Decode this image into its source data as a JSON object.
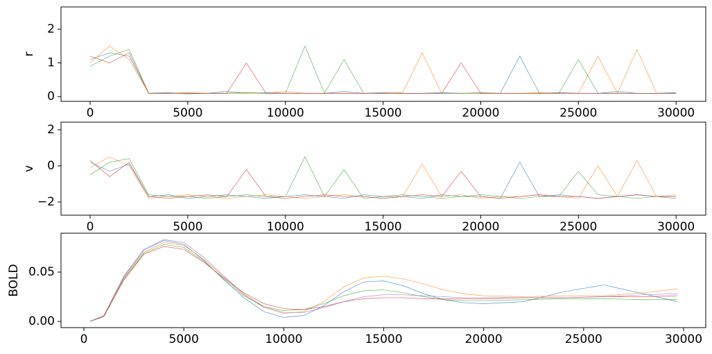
{
  "chart_data": [
    {
      "type": "line",
      "y_label": "r",
      "x": [
        0,
        1000,
        2000,
        3000,
        4000,
        5000,
        6000,
        7000,
        8000,
        9000,
        10000,
        11000,
        12000,
        13000,
        14000,
        15000,
        16000,
        17000,
        18000,
        19000,
        20000,
        21000,
        22000,
        23000,
        24000,
        25000,
        26000,
        27000,
        28000,
        29000,
        30000
      ],
      "series": [
        {
          "color": "#1f77b4",
          "values": [
            1.1,
            1.3,
            1.2,
            0.1,
            0.12,
            0.08,
            0.1,
            0.15,
            0.1,
            0.12,
            0.1,
            0.1,
            0.1,
            0.15,
            0.1,
            0.12,
            0.1,
            0.1,
            0.12,
            0.1,
            0.1,
            0.1,
            1.2,
            0.1,
            0.12,
            0.1,
            0.1,
            0.15,
            0.1,
            0.1,
            0.12
          ]
        },
        {
          "color": "#ff7f0e",
          "values": [
            1.0,
            1.5,
            1.1,
            0.1,
            0.1,
            0.12,
            0.1,
            0.1,
            0.1,
            0.1,
            0.15,
            0.1,
            0.1,
            0.1,
            0.1,
            0.1,
            0.12,
            1.3,
            0.1,
            0.1,
            0.1,
            0.1,
            0.1,
            0.12,
            0.1,
            0.1,
            1.2,
            0.1,
            1.4,
            0.1,
            0.1
          ]
        },
        {
          "color": "#2ca02c",
          "values": [
            0.9,
            1.2,
            1.4,
            0.1,
            0.1,
            0.1,
            0.1,
            0.1,
            0.12,
            0.1,
            0.1,
            1.5,
            0.1,
            1.1,
            0.1,
            0.1,
            0.1,
            0.1,
            0.1,
            0.1,
            0.12,
            0.1,
            0.1,
            0.1,
            0.1,
            1.1,
            0.1,
            0.1,
            0.1,
            0.1,
            0.1
          ]
        },
        {
          "color": "#d62728",
          "values": [
            1.2,
            1.0,
            1.3,
            0.1,
            0.1,
            0.1,
            0.1,
            0.1,
            1.0,
            0.1,
            0.1,
            0.1,
            0.1,
            0.1,
            0.1,
            0.1,
            0.1,
            0.1,
            0.1,
            1.0,
            0.1,
            0.1,
            0.1,
            0.1,
            0.1,
            0.1,
            0.1,
            0.1,
            0.1,
            0.1,
            0.1
          ]
        }
      ],
      "xlim": [
        -1490,
        31520
      ],
      "ylim": [
        -0.14,
        2.66
      ],
      "xticks": [
        0,
        5000,
        10000,
        15000,
        20000,
        25000,
        30000
      ],
      "yticks": [
        0,
        1,
        2
      ]
    },
    {
      "type": "line",
      "y_label": "v",
      "x": [
        0,
        1000,
        2000,
        3000,
        4000,
        5000,
        6000,
        7000,
        8000,
        9000,
        10000,
        11000,
        12000,
        13000,
        14000,
        15000,
        16000,
        17000,
        18000,
        19000,
        20000,
        21000,
        22000,
        23000,
        24000,
        25000,
        26000,
        27000,
        28000,
        29000,
        30000
      ],
      "series": [
        {
          "color": "#1f77b4",
          "values": [
            0.2,
            -0.3,
            0.1,
            -1.7,
            -1.6,
            -1.8,
            -1.7,
            -1.6,
            -1.7,
            -1.8,
            -1.7,
            -1.6,
            -1.7,
            -1.8,
            -1.6,
            -1.7,
            -1.7,
            -1.8,
            -1.6,
            -1.7,
            -1.7,
            -1.8,
            0.2,
            -1.7,
            -1.6,
            -1.7,
            -1.8,
            -1.7,
            -1.6,
            -1.7,
            -1.8
          ]
        },
        {
          "color": "#ff7f0e",
          "values": [
            -0.1,
            0.5,
            0.0,
            -1.8,
            -1.7,
            -1.6,
            -1.7,
            -1.8,
            -1.7,
            -1.6,
            -1.7,
            -1.8,
            -1.7,
            -1.6,
            -1.7,
            -1.8,
            -1.7,
            0.1,
            -1.7,
            -1.6,
            -1.8,
            -1.7,
            -1.7,
            -1.6,
            -1.7,
            -1.8,
            0.0,
            -1.7,
            0.3,
            -1.7,
            -1.6
          ]
        },
        {
          "color": "#2ca02c",
          "values": [
            -0.5,
            0.2,
            0.4,
            -1.6,
            -1.7,
            -1.7,
            -1.8,
            -1.7,
            -1.6,
            -1.7,
            -1.7,
            0.5,
            -1.7,
            -0.2,
            -1.8,
            -1.7,
            -1.6,
            -1.7,
            -1.8,
            -1.7,
            -1.6,
            -1.7,
            -1.8,
            -1.7,
            -1.7,
            -0.3,
            -1.6,
            -1.7,
            -1.8,
            -1.7,
            -1.7
          ]
        },
        {
          "color": "#d62728",
          "values": [
            0.3,
            -0.6,
            0.2,
            -1.7,
            -1.8,
            -1.7,
            -1.6,
            -1.7,
            -0.2,
            -1.7,
            -1.8,
            -1.7,
            -1.6,
            -1.7,
            -1.7,
            -1.8,
            -1.7,
            -1.6,
            -1.7,
            -0.3,
            -1.7,
            -1.8,
            -1.7,
            -1.6,
            -1.7,
            -1.7,
            -1.8,
            -1.7,
            -1.6,
            -1.7,
            -1.7
          ]
        }
      ],
      "xlim": [
        -1490,
        31520
      ],
      "ylim": [
        -2.73,
        2.42
      ],
      "xticks": [
        0,
        5000,
        10000,
        15000,
        20000,
        25000,
        30000
      ],
      "yticks": [
        {
          "value": -2,
          "label": "−2"
        },
        0,
        2
      ]
    },
    {
      "type": "line",
      "y_label": "BOLD",
      "x": [
        300,
        1000,
        2000,
        3000,
        4000,
        5000,
        6000,
        7000,
        8000,
        9000,
        10000,
        11000,
        12000,
        13000,
        14000,
        15000,
        16000,
        17000,
        18000,
        19000,
        20000,
        22000,
        24000,
        26000,
        28000,
        29700
      ],
      "series": [
        {
          "color": "#1f77b4",
          "values": [
            0,
            0.006,
            0.045,
            0.072,
            0.082,
            0.078,
            0.062,
            0.042,
            0.024,
            0.01,
            0.004,
            0.006,
            0.016,
            0.03,
            0.04,
            0.041,
            0.036,
            0.028,
            0.022,
            0.019,
            0.018,
            0.02,
            0.03,
            0.037,
            0.028,
            0.02
          ]
        },
        {
          "color": "#ff7f0e",
          "values": [
            0,
            0.006,
            0.044,
            0.07,
            0.08,
            0.077,
            0.063,
            0.045,
            0.027,
            0.014,
            0.008,
            0.01,
            0.02,
            0.035,
            0.044,
            0.046,
            0.043,
            0.038,
            0.032,
            0.028,
            0.026,
            0.025,
            0.026,
            0.026,
            0.029,
            0.033
          ]
        },
        {
          "color": "#2ca02c",
          "values": [
            0,
            0.005,
            0.043,
            0.069,
            0.078,
            0.075,
            0.061,
            0.043,
            0.026,
            0.015,
            0.011,
            0.012,
            0.018,
            0.026,
            0.031,
            0.032,
            0.029,
            0.025,
            0.022,
            0.021,
            0.021,
            0.022,
            0.023,
            0.023,
            0.022,
            0.022
          ]
        },
        {
          "color": "#d62728",
          "values": [
            0,
            0.005,
            0.042,
            0.068,
            0.076,
            0.073,
            0.06,
            0.044,
            0.029,
            0.018,
            0.013,
            0.012,
            0.015,
            0.02,
            0.023,
            0.024,
            0.024,
            0.023,
            0.023,
            0.023,
            0.023,
            0.024,
            0.024,
            0.025,
            0.025,
            0.026
          ]
        },
        {
          "color": "#9467bd",
          "values": [
            0,
            0.006,
            0.046,
            0.073,
            0.083,
            0.08,
            0.065,
            0.046,
            0.028,
            0.015,
            0.009,
            0.009,
            0.014,
            0.02,
            0.025,
            0.027,
            0.027,
            0.026,
            0.025,
            0.024,
            0.024,
            0.024,
            0.024,
            0.025,
            0.027,
            0.028
          ]
        }
      ],
      "xlim": [
        -1145,
        31110
      ],
      "ylim": [
        -0.0063,
        0.0894
      ],
      "xticks": [
        0,
        5000,
        10000,
        15000,
        20000,
        25000,
        30000
      ],
      "yticks": [
        {
          "value": 0,
          "label": "0.00"
        },
        {
          "value": 0.05,
          "label": "0.05"
        }
      ]
    }
  ]
}
